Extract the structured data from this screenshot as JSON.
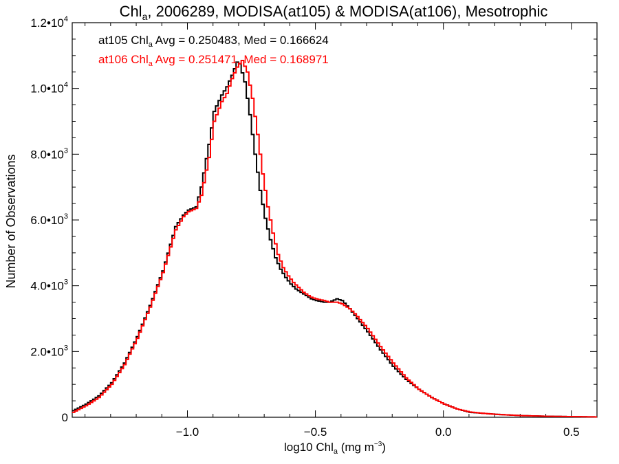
{
  "chart_data": {
    "type": "line",
    "title_main": "Chl",
    "title_sub": "a",
    "title_rest": ", 2006289, MODISA(at105) & MODISA(at106), Mesotrophic",
    "xlabel_pre": "log10 Chl",
    "xlabel_sub": "a",
    "xlabel_units": " (mg m",
    "xlabel_exp": "−3",
    "xlabel_close": ")",
    "ylabel": "Number of Observations",
    "xlim": [
      -1.45,
      0.6
    ],
    "ylim": [
      0,
      12000
    ],
    "x_ticks": [
      {
        "value": -1.0,
        "label": "−1.0"
      },
      {
        "value": -0.5,
        "label": "−0.5"
      },
      {
        "value": 0.0,
        "label": "0.0"
      },
      {
        "value": 0.5,
        "label": "0.5"
      }
    ],
    "y_ticks": [
      {
        "value": 0,
        "mant": "0",
        "exp": ""
      },
      {
        "value": 2000,
        "mant": "2.0•10",
        "exp": "3"
      },
      {
        "value": 4000,
        "mant": "4.0•10",
        "exp": "3"
      },
      {
        "value": 6000,
        "mant": "6.0•10",
        "exp": "3"
      },
      {
        "value": 8000,
        "mant": "8.0•10",
        "exp": "3"
      },
      {
        "value": 10000,
        "mant": "1.0•10",
        "exp": "4"
      },
      {
        "value": 12000,
        "mant": "1.2•10",
        "exp": "4"
      }
    ],
    "legend": [
      {
        "pre": "at105 Chl",
        "sub": "a",
        "post": " Avg = 0.250483, Med = 0.166624",
        "color": "#000000"
      },
      {
        "pre": "at106 Chl",
        "sub": "a",
        "post": " Avg = 0.251471, Med = 0.168971",
        "color": "#ff0000"
      }
    ],
    "series": [
      {
        "color": "#000000",
        "x": [
          -1.45,
          -1.4,
          -1.35,
          -1.3,
          -1.25,
          -1.2,
          -1.15,
          -1.1,
          -1.05,
          -1.02,
          -1.0,
          -0.97,
          -0.95,
          -0.92,
          -0.9,
          -0.87,
          -0.85,
          -0.83,
          -0.81,
          -0.8,
          -0.78,
          -0.76,
          -0.74,
          -0.72,
          -0.7,
          -0.68,
          -0.66,
          -0.64,
          -0.62,
          -0.6,
          -0.58,
          -0.55,
          -0.52,
          -0.5,
          -0.47,
          -0.45,
          -0.42,
          -0.4,
          -0.37,
          -0.35,
          -0.3,
          -0.25,
          -0.2,
          -0.15,
          -0.1,
          -0.05,
          0.0,
          0.05,
          0.1,
          0.15,
          0.2,
          0.3,
          0.4,
          0.5,
          0.6
        ],
        "y": [
          200,
          400,
          650,
          1050,
          1650,
          2450,
          3400,
          4450,
          5800,
          6150,
          6300,
          6400,
          7000,
          8300,
          9300,
          9800,
          10050,
          10400,
          10800,
          10750,
          10200,
          9200,
          8000,
          6900,
          6050,
          5400,
          4850,
          4500,
          4250,
          4050,
          3900,
          3750,
          3600,
          3550,
          3500,
          3500,
          3600,
          3550,
          3300,
          3100,
          2600,
          2050,
          1550,
          1150,
          850,
          600,
          400,
          250,
          150,
          120,
          90,
          50,
          30,
          20,
          10
        ]
      },
      {
        "color": "#ff0000",
        "x": [
          -1.45,
          -1.4,
          -1.35,
          -1.3,
          -1.25,
          -1.2,
          -1.15,
          -1.1,
          -1.05,
          -1.02,
          -1.0,
          -0.97,
          -0.95,
          -0.92,
          -0.9,
          -0.87,
          -0.85,
          -0.83,
          -0.81,
          -0.79,
          -0.77,
          -0.75,
          -0.73,
          -0.71,
          -0.69,
          -0.67,
          -0.65,
          -0.63,
          -0.61,
          -0.59,
          -0.57,
          -0.55,
          -0.52,
          -0.5,
          -0.47,
          -0.45,
          -0.42,
          -0.4,
          -0.37,
          -0.35,
          -0.3,
          -0.25,
          -0.2,
          -0.15,
          -0.1,
          -0.05,
          0.0,
          0.05,
          0.1,
          0.15,
          0.2,
          0.3,
          0.4,
          0.5,
          0.6
        ],
        "y": [
          150,
          350,
          600,
          1000,
          1600,
          2400,
          3350,
          4400,
          5700,
          6100,
          6250,
          6350,
          6750,
          7900,
          9000,
          9600,
          9850,
          10300,
          10650,
          10850,
          10500,
          9700,
          8600,
          7400,
          6400,
          5600,
          4950,
          4550,
          4300,
          4100,
          3950,
          3800,
          3650,
          3600,
          3550,
          3500,
          3500,
          3450,
          3300,
          3150,
          2700,
          2150,
          1650,
          1200,
          850,
          600,
          400,
          250,
          160,
          120,
          90,
          50,
          30,
          20,
          10
        ]
      }
    ]
  }
}
